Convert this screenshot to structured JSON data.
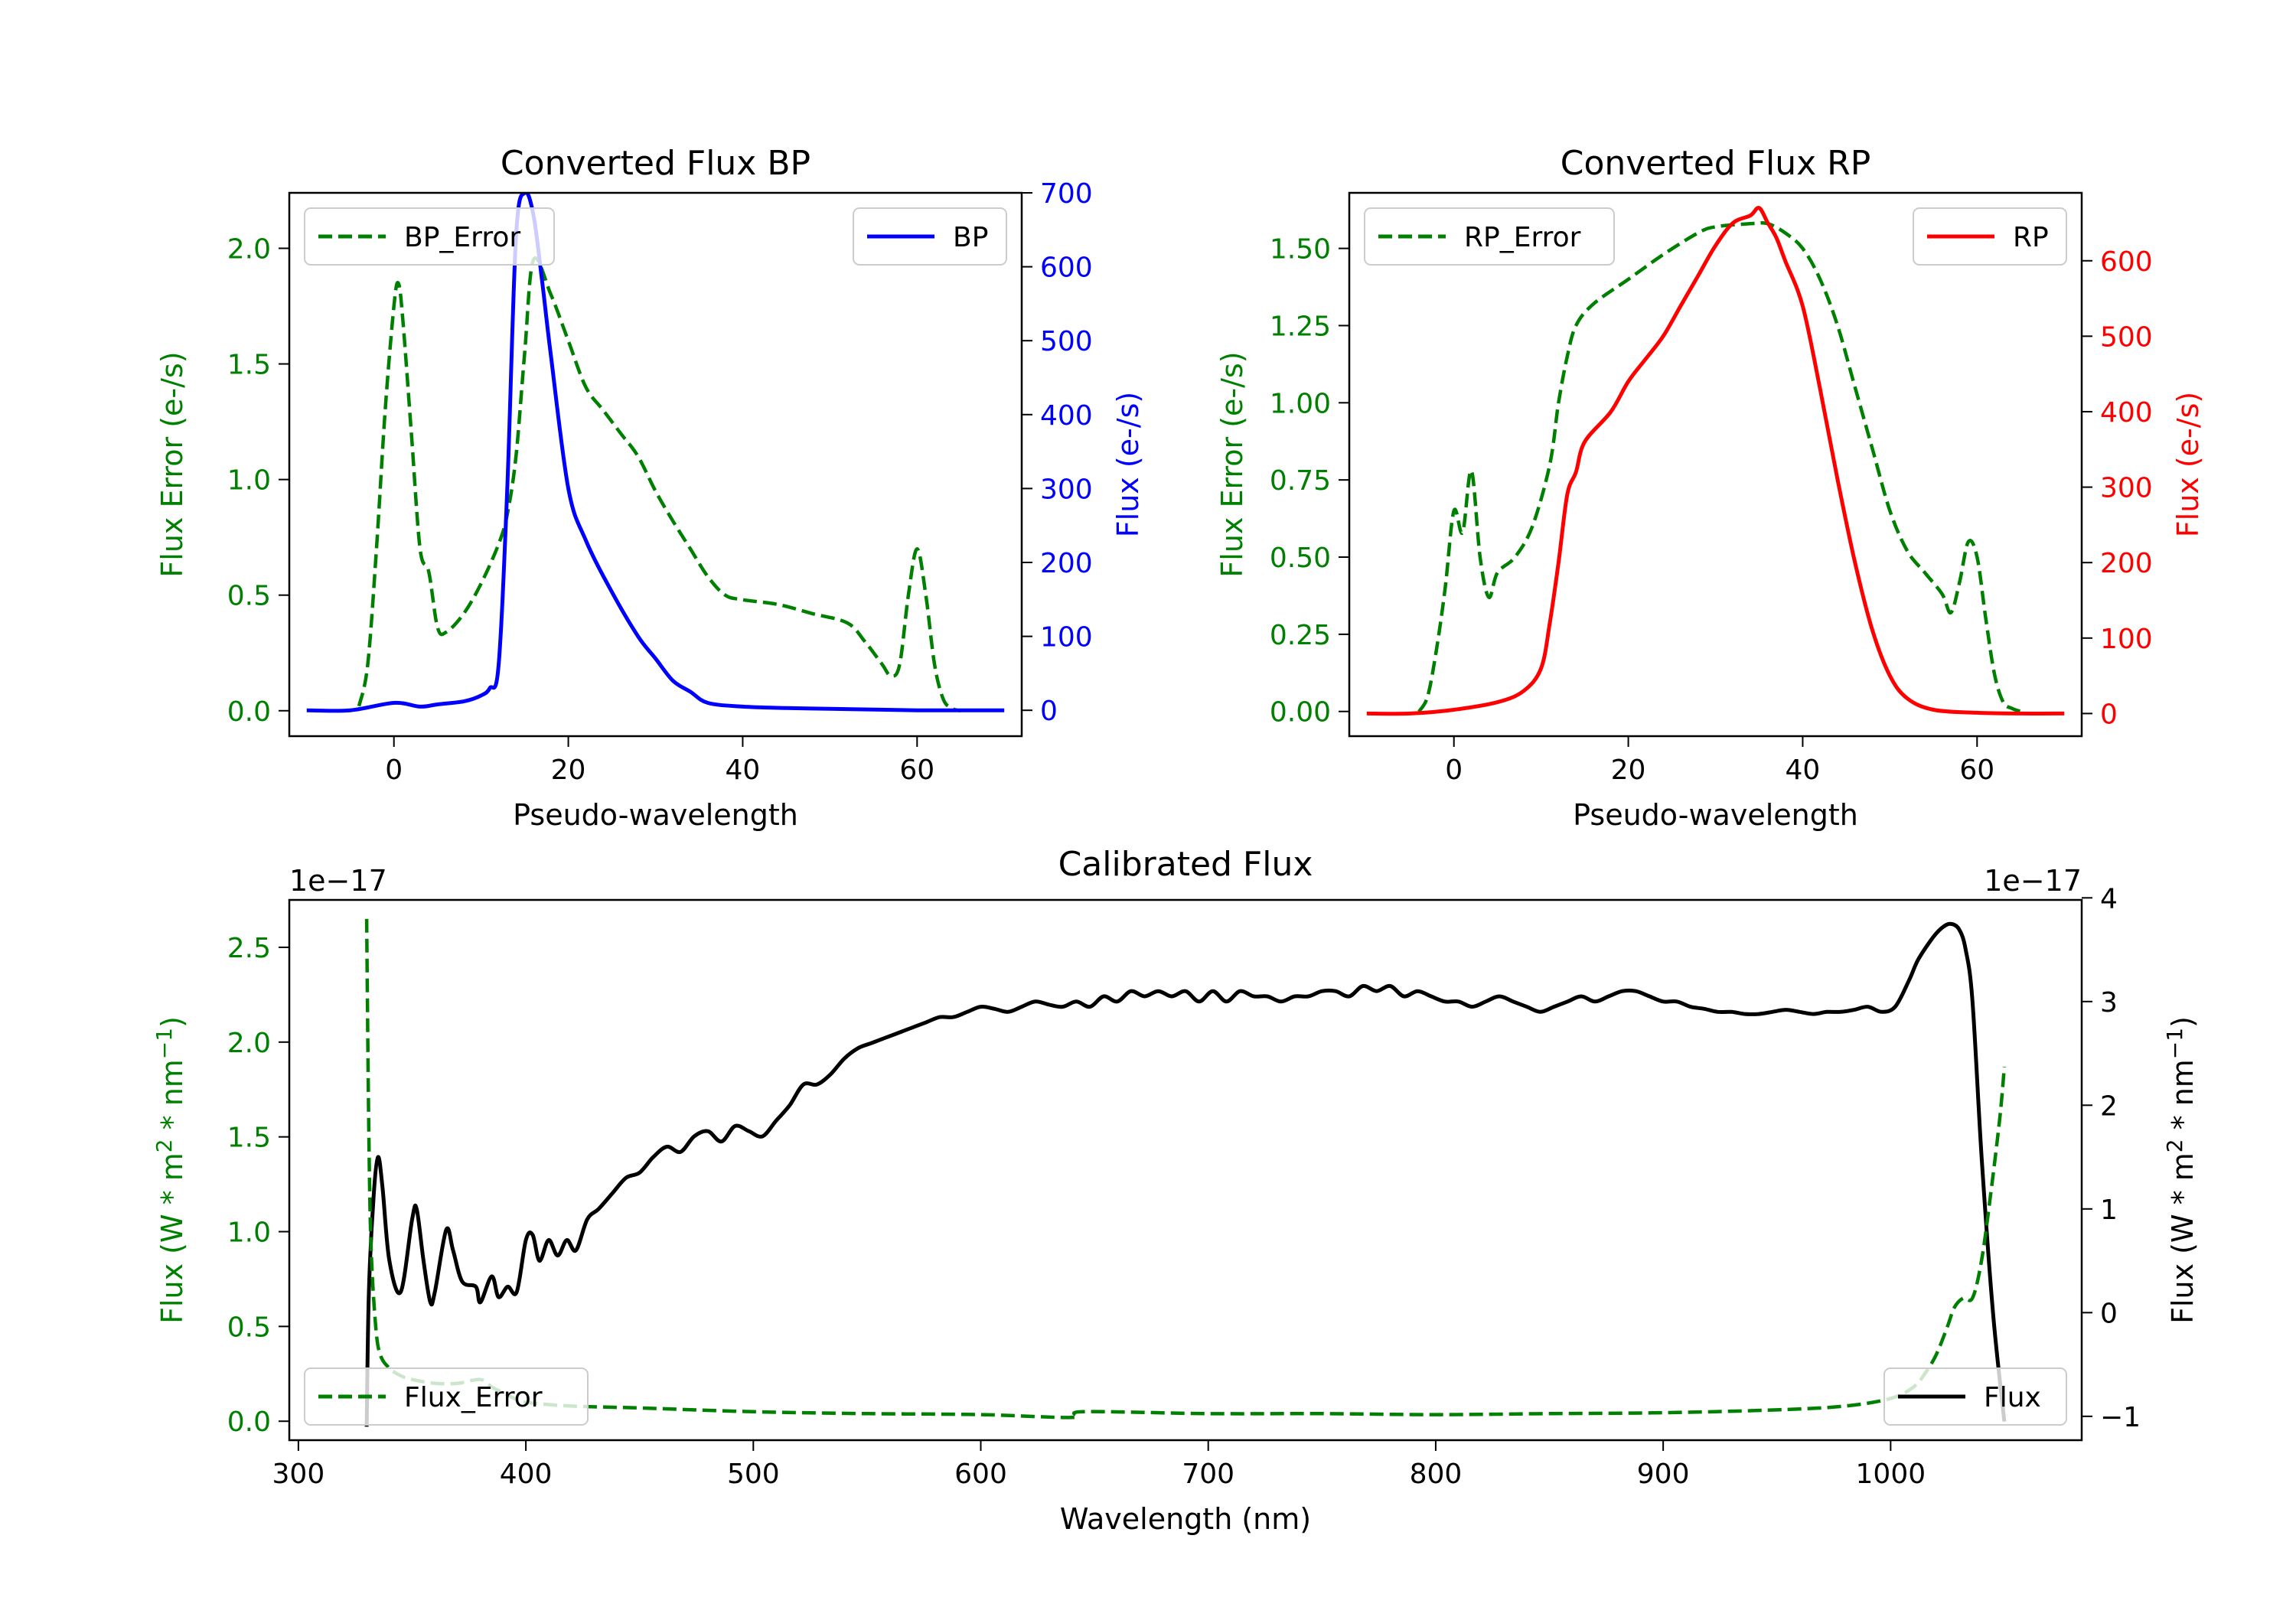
{
  "chart_data": [
    {
      "type": "line",
      "title": "Converted Flux BP",
      "xlabel": "Pseudo-wavelength",
      "ylabel_left": "Flux Error (e-/s)",
      "ylabel_right": "Flux (e-/s)",
      "xlim": [
        -12,
        72
      ],
      "ylim_left": [
        -0.11,
        2.24
      ],
      "ylim_right": [
        -35,
        700
      ],
      "xticks": [
        0,
        20,
        40,
        60
      ],
      "xtick_labels": [
        "0",
        "20",
        "40",
        "60"
      ],
      "yticks_left": [
        0.0,
        0.5,
        1.0,
        1.5,
        2.0
      ],
      "ytick_labels_left": [
        "0.0",
        "0.5",
        "1.0",
        "1.5",
        "2.0"
      ],
      "yticks_right": [
        0,
        100,
        200,
        300,
        400,
        500,
        600,
        700
      ],
      "ytick_labels_right": [
        "0",
        "100",
        "200",
        "300",
        "400",
        "500",
        "600",
        "700"
      ],
      "legend_left": "top-left",
      "legend_right": "top-right",
      "series": [
        {
          "name": "BP_Error",
          "axis": "left",
          "color": "#008000",
          "style": "dashed",
          "x": [
            -4,
            -3,
            -2,
            -1,
            0,
            0.5,
            1,
            2,
            3,
            4,
            5,
            6,
            8,
            10,
            12,
            13,
            14,
            15,
            16,
            18,
            20,
            22,
            24,
            26,
            28,
            30,
            32,
            34,
            36,
            38,
            40,
            44,
            48,
            52,
            54,
            56,
            57,
            58,
            59,
            60,
            61,
            62,
            63,
            64,
            65
          ],
          "y": [
            0.02,
            0.2,
            0.7,
            1.3,
            1.75,
            1.85,
            1.7,
            1.2,
            0.7,
            0.6,
            0.36,
            0.34,
            0.42,
            0.55,
            0.72,
            0.85,
            1.1,
            1.55,
            1.95,
            1.8,
            1.6,
            1.4,
            1.3,
            1.2,
            1.1,
            0.95,
            0.82,
            0.7,
            0.58,
            0.5,
            0.48,
            0.46,
            0.42,
            0.38,
            0.3,
            0.2,
            0.15,
            0.2,
            0.5,
            0.7,
            0.5,
            0.2,
            0.05,
            0.01,
            0.0
          ]
        },
        {
          "name": "BP",
          "axis": "right",
          "color": "#0000ff",
          "style": "solid",
          "x": [
            -10,
            -5,
            0,
            3,
            5,
            8,
            10,
            11,
            12,
            13,
            14,
            15,
            16,
            17,
            18,
            20,
            22,
            25,
            28,
            30,
            32,
            34,
            36,
            40,
            45,
            50,
            55,
            60,
            65,
            70
          ],
          "y": [
            0,
            0,
            10,
            5,
            8,
            12,
            20,
            30,
            60,
            300,
            640,
            700,
            670,
            580,
            480,
            300,
            230,
            160,
            100,
            70,
            40,
            25,
            10,
            5,
            3,
            2,
            1,
            0,
            0,
            0
          ]
        }
      ]
    },
    {
      "type": "line",
      "title": "Converted Flux RP",
      "xlabel": "Pseudo-wavelength",
      "ylabel_left": "Flux Error (e-/s)",
      "ylabel_right": "Flux (e-/s)",
      "xlim": [
        -12,
        72
      ],
      "ylim_left": [
        -0.08,
        1.68
      ],
      "ylim_right": [
        -30,
        690
      ],
      "xticks": [
        0,
        20,
        40,
        60
      ],
      "xtick_labels": [
        "0",
        "20",
        "40",
        "60"
      ],
      "yticks_left": [
        0.0,
        0.25,
        0.5,
        0.75,
        1.0,
        1.25,
        1.5
      ],
      "ytick_labels_left": [
        "0.00",
        "0.25",
        "0.50",
        "0.75",
        "1.00",
        "1.25",
        "1.50"
      ],
      "yticks_right": [
        0,
        100,
        200,
        300,
        400,
        500,
        600
      ],
      "ytick_labels_right": [
        "0",
        "100",
        "200",
        "300",
        "400",
        "500",
        "600"
      ],
      "legend_left": "top-left",
      "legend_right": "top-right",
      "series": [
        {
          "name": "RP_Error",
          "axis": "left",
          "color": "#008000",
          "style": "dashed",
          "x": [
            -4,
            -3,
            -2,
            -1,
            0,
            1,
            2,
            3,
            4,
            5,
            7,
            9,
            11,
            12,
            13,
            14,
            16,
            20,
            24,
            28,
            30,
            34,
            36,
            38,
            40,
            42,
            44,
            46,
            48,
            50,
            52,
            54,
            56,
            57,
            58,
            59,
            60,
            61,
            62,
            63,
            64,
            65
          ],
          "y": [
            0.0,
            0.05,
            0.2,
            0.4,
            0.65,
            0.58,
            0.78,
            0.5,
            0.37,
            0.45,
            0.5,
            0.6,
            0.8,
            1.0,
            1.15,
            1.25,
            1.32,
            1.4,
            1.48,
            1.55,
            1.57,
            1.58,
            1.58,
            1.55,
            1.5,
            1.4,
            1.25,
            1.05,
            0.85,
            0.65,
            0.52,
            0.45,
            0.38,
            0.32,
            0.42,
            0.55,
            0.5,
            0.3,
            0.12,
            0.03,
            0.01,
            0.0
          ]
        },
        {
          "name": "RP",
          "axis": "right",
          "color": "#ff0000",
          "style": "solid",
          "x": [
            -10,
            -5,
            0,
            5,
            8,
            10,
            11,
            12,
            13,
            14,
            15,
            18,
            20,
            22,
            24,
            26,
            28,
            30,
            32,
            34,
            35,
            36,
            37,
            38,
            40,
            42,
            44,
            46,
            48,
            50,
            52,
            55,
            60,
            65,
            70
          ],
          "y": [
            0,
            0,
            5,
            15,
            30,
            60,
            120,
            200,
            290,
            320,
            360,
            400,
            440,
            470,
            500,
            540,
            580,
            620,
            650,
            660,
            670,
            650,
            630,
            600,
            540,
            430,
            310,
            200,
            110,
            50,
            20,
            5,
            1,
            0,
            0
          ]
        }
      ]
    },
    {
      "type": "line",
      "title": "Calibrated Flux",
      "xlabel": "Wavelength (nm)",
      "ylabel_left": "Flux (W * m^2 * nm^-1)",
      "ylabel_right": "Flux (W * m^2 * nm^-1)",
      "offset_left": "1e−17",
      "offset_right": "1e−17",
      "xlim": [
        296,
        1084
      ],
      "ylim_left": [
        -0.1,
        2.75
      ],
      "ylim_right": [
        -1.23,
        3.98
      ],
      "xticks": [
        300,
        400,
        500,
        600,
        700,
        800,
        900,
        1000
      ],
      "xtick_labels": [
        "300",
        "400",
        "500",
        "600",
        "700",
        "800",
        "900",
        "1000"
      ],
      "yticks_left": [
        0.0,
        0.5,
        1.0,
        1.5,
        2.0,
        2.5
      ],
      "ytick_labels_left": [
        "0.0",
        "0.5",
        "1.0",
        "1.5",
        "2.0",
        "2.5"
      ],
      "yticks_right": [
        -1,
        0,
        1,
        2,
        3,
        4
      ],
      "ytick_labels_right": [
        "−1",
        "0",
        "1",
        "2",
        "3",
        "4"
      ],
      "legend_left": "bottom-left",
      "legend_right": "bottom-right",
      "series": [
        {
          "name": "Flux",
          "axis": "right",
          "color": "#000000",
          "style": "solid",
          "x": [
            330,
            331,
            333,
            335,
            337,
            340,
            345,
            350,
            352,
            355,
            358,
            360,
            365,
            368,
            372,
            378,
            380,
            385,
            388,
            392,
            396,
            400,
            403,
            406,
            410,
            414,
            418,
            422,
            427,
            432,
            438,
            444,
            450,
            456,
            462,
            468,
            474,
            480,
            486,
            492,
            498,
            504,
            510,
            516,
            522,
            528,
            534,
            540,
            546,
            552,
            558,
            564,
            570,
            576,
            582,
            588,
            594,
            600,
            606,
            612,
            618,
            624,
            630,
            636,
            642,
            648,
            654,
            660,
            666,
            672,
            678,
            684,
            690,
            696,
            702,
            708,
            714,
            720,
            726,
            732,
            738,
            744,
            750,
            756,
            762,
            768,
            774,
            780,
            786,
            792,
            798,
            804,
            810,
            816,
            822,
            828,
            834,
            840,
            846,
            852,
            858,
            864,
            870,
            876,
            882,
            888,
            894,
            900,
            906,
            912,
            918,
            924,
            930,
            936,
            942,
            948,
            954,
            960,
            966,
            972,
            978,
            984,
            990,
            996,
            1002,
            1008,
            1012,
            1018,
            1022,
            1026,
            1030,
            1033,
            1036,
            1040,
            1045,
            1050
          ],
          "y": [
            -1.1,
            0.2,
            1.1,
            1.5,
            1.2,
            0.5,
            0.2,
            0.9,
            1.0,
            0.5,
            0.1,
            0.2,
            0.8,
            0.6,
            0.3,
            0.25,
            0.1,
            0.35,
            0.15,
            0.25,
            0.2,
            0.7,
            0.75,
            0.5,
            0.7,
            0.55,
            0.7,
            0.6,
            0.9,
            1.0,
            1.15,
            1.3,
            1.35,
            1.5,
            1.6,
            1.55,
            1.7,
            1.75,
            1.65,
            1.8,
            1.75,
            1.7,
            1.85,
            2.0,
            2.2,
            2.2,
            2.3,
            2.45,
            2.55,
            2.6,
            2.65,
            2.7,
            2.75,
            2.8,
            2.85,
            2.85,
            2.9,
            2.95,
            2.93,
            2.9,
            2.95,
            3.0,
            2.97,
            2.95,
            3.0,
            2.95,
            3.05,
            3.0,
            3.1,
            3.05,
            3.1,
            3.05,
            3.1,
            3.0,
            3.1,
            3.0,
            3.1,
            3.05,
            3.05,
            3.0,
            3.05,
            3.05,
            3.1,
            3.1,
            3.05,
            3.15,
            3.1,
            3.15,
            3.05,
            3.1,
            3.05,
            3.0,
            3.0,
            2.95,
            3.0,
            3.05,
            3.0,
            2.95,
            2.9,
            2.95,
            3.0,
            3.05,
            3.0,
            3.05,
            3.1,
            3.1,
            3.05,
            3.0,
            3.0,
            2.95,
            2.93,
            2.9,
            2.9,
            2.88,
            2.88,
            2.9,
            2.92,
            2.9,
            2.88,
            2.9,
            2.9,
            2.92,
            2.95,
            2.9,
            2.95,
            3.2,
            3.4,
            3.6,
            3.7,
            3.75,
            3.7,
            3.5,
            3.0,
            1.5,
            0.0,
            -1.05
          ]
        },
        {
          "name": "Flux_Error",
          "axis": "left",
          "color": "#008000",
          "style": "dashed",
          "x": [
            330,
            331,
            332,
            334,
            336,
            340,
            345,
            350,
            360,
            370,
            380,
            385,
            390,
            395,
            400,
            420,
            450,
            500,
            550,
            600,
            640,
            645,
            700,
            750,
            800,
            850,
            900,
            950,
            980,
            1000,
            1010,
            1015,
            1020,
            1025,
            1028,
            1032,
            1036,
            1040,
            1044,
            1048,
            1050
          ],
          "y": [
            2.65,
            1.5,
            0.9,
            0.5,
            0.35,
            0.28,
            0.24,
            0.22,
            0.2,
            0.2,
            0.22,
            0.18,
            0.15,
            0.12,
            0.1,
            0.08,
            0.07,
            0.05,
            0.04,
            0.035,
            0.02,
            0.05,
            0.04,
            0.04,
            0.035,
            0.04,
            0.045,
            0.06,
            0.08,
            0.12,
            0.18,
            0.25,
            0.35,
            0.5,
            0.6,
            0.65,
            0.65,
            0.85,
            1.2,
            1.6,
            1.87
          ]
        }
      ]
    }
  ]
}
